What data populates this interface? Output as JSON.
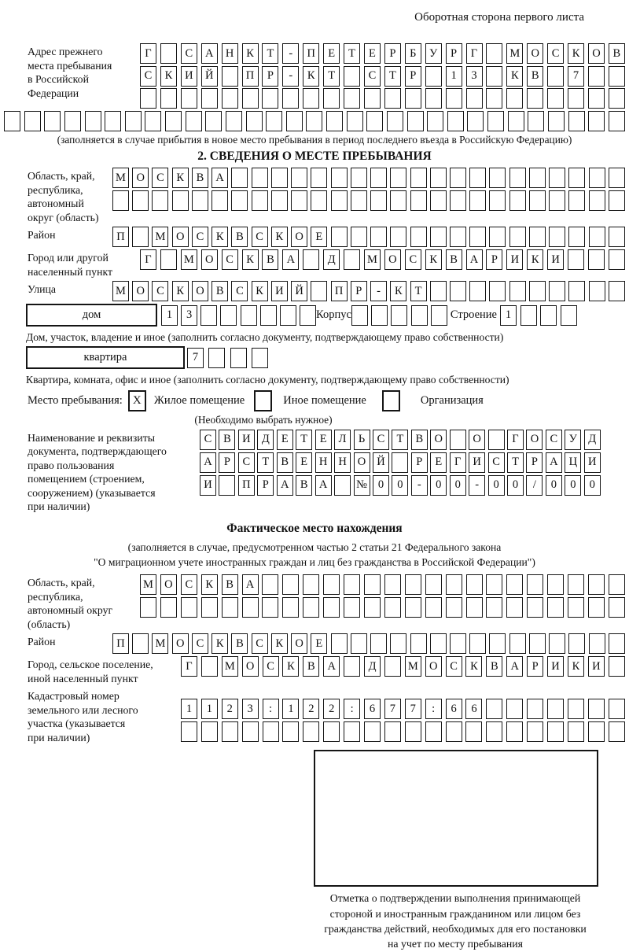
{
  "page": {
    "header_note": "Оборотная сторона первого листа"
  },
  "colors": {
    "ink": "#111111",
    "background": "#ffffff"
  },
  "prev_address": {
    "label": "Адрес прежнего\nместа пребывания\nв Российской\nФедерации",
    "rows": [
      [
        "Г",
        "",
        "С",
        "А",
        "Н",
        "К",
        "Т",
        "-",
        "П",
        "Е",
        "Т",
        "Е",
        "Р",
        "Б",
        "У",
        "Р",
        "Г",
        "",
        "М",
        "О",
        "С",
        "К",
        "О",
        "В"
      ],
      [
        "С",
        "К",
        "И",
        "Й",
        "",
        "П",
        "Р",
        "-",
        "К",
        "Т",
        "",
        "С",
        "Т",
        "Р",
        "",
        "1",
        "3",
        "",
        "К",
        "В",
        "",
        "7",
        "",
        ""
      ],
      [
        "",
        "",
        "",
        "",
        "",
        "",
        "",
        "",
        "",
        "",
        "",
        "",
        "",
        "",
        "",
        "",
        "",
        "",
        "",
        "",
        "",
        "",
        "",
        ""
      ]
    ],
    "full_row": [
      "",
      "",
      "",
      "",
      "",
      "",
      "",
      "",
      "",
      "",
      "",
      "",
      "",
      "",
      "",
      "",
      "",
      "",
      "",
      "",
      "",
      "",
      "",
      "",
      "",
      "",
      "",
      "",
      "",
      "",
      ""
    ],
    "note": "(заполняется в случае прибытия в новое место пребывания в период последнего въезда в Российскую Федерацию)"
  },
  "section2": {
    "title": "2. СВЕДЕНИЯ О МЕСТЕ ПРЕБЫВАНИЯ",
    "region": {
      "label": "Область, край,\nреспублика,\nавтономный\nокруг (область)",
      "row1": [
        "М",
        "О",
        "С",
        "К",
        "В",
        "А",
        "",
        "",
        "",
        "",
        "",
        "",
        "",
        "",
        "",
        "",
        "",
        "",
        "",
        "",
        "",
        "",
        "",
        "",
        "",
        ""
      ],
      "row2": [
        "",
        "",
        "",
        "",
        "",
        "",
        "",
        "",
        "",
        "",
        "",
        "",
        "",
        "",
        "",
        "",
        "",
        "",
        "",
        "",
        "",
        "",
        "",
        "",
        "",
        ""
      ]
    },
    "district": {
      "label": "Район",
      "cells": [
        "П",
        "",
        "М",
        "О",
        "С",
        "К",
        "В",
        "С",
        "К",
        "О",
        "Е",
        "",
        "",
        "",
        "",
        "",
        "",
        "",
        "",
        "",
        "",
        "",
        "",
        "",
        "",
        ""
      ]
    },
    "city": {
      "label": "Город или другой\nнаселенный пункт",
      "cells": [
        "Г",
        "",
        "М",
        "О",
        "С",
        "К",
        "В",
        "А",
        "",
        "Д",
        "",
        "М",
        "О",
        "С",
        "К",
        "В",
        "А",
        "Р",
        "И",
        "К",
        "И",
        "",
        "",
        ""
      ]
    },
    "street": {
      "label": "Улица",
      "cells": [
        "М",
        "О",
        "С",
        "К",
        "О",
        "В",
        "С",
        "К",
        "И",
        "Й",
        "",
        "П",
        "Р",
        "-",
        "К",
        "Т",
        "",
        "",
        "",
        "",
        "",
        "",
        "",
        "",
        "",
        ""
      ]
    },
    "house": {
      "box_label": "дом",
      "cells": [
        "1",
        "3",
        "",
        "",
        "",
        "",
        "",
        ""
      ],
      "korpus_label": "Корпус",
      "korpus_cells": [
        "",
        "",
        "",
        "",
        ""
      ],
      "stroenie_label": "Строение",
      "stroenie_cells": [
        "1",
        "",
        "",
        ""
      ]
    },
    "house_note": "Дом, участок, владение и иное (заполнить согласно документу, подтверждающему право собственности)",
    "apartment": {
      "box_label": "квартира",
      "cells": [
        "7",
        "",
        "",
        ""
      ]
    },
    "apartment_note": "Квартира, комната, офис и иное (заполнить согласно документу, подтверждающему право собственности)",
    "stay_type": {
      "label": "Место пребывания:",
      "options": [
        {
          "label": "Жилое помещение",
          "mark": "X"
        },
        {
          "label": "Иное помещение",
          "mark": ""
        },
        {
          "label": "Организация",
          "mark": ""
        }
      ],
      "note": "(Необходимо выбрать нужное)"
    },
    "document": {
      "label": "Наименование и реквизиты\nдокумента, подтверждающего\nправо пользования\nпомещением (строением,\nсооружением) (указывается\nпри наличии)",
      "rows": [
        [
          "С",
          "В",
          "И",
          "Д",
          "Е",
          "Т",
          "Е",
          "Л",
          "Ь",
          "С",
          "Т",
          "В",
          "О",
          "",
          "О",
          "",
          "Г",
          "О",
          "С",
          "У",
          "Д"
        ],
        [
          "А",
          "Р",
          "С",
          "Т",
          "В",
          "Е",
          "Н",
          "Н",
          "О",
          "Й",
          "",
          "Р",
          "Е",
          "Г",
          "И",
          "С",
          "Т",
          "Р",
          "А",
          "Ц",
          "И"
        ],
        [
          "И",
          "",
          "П",
          "Р",
          "А",
          "В",
          "А",
          "",
          "№",
          "0",
          "0",
          "-",
          "0",
          "0",
          "-",
          "0",
          "0",
          "/",
          "0",
          "0",
          "0"
        ]
      ]
    }
  },
  "actual_location": {
    "title": "Фактическое место нахождения",
    "note_line1": "(заполняется в случае, предусмотренном частью 2 статьи 21 Федерального закона",
    "note_line2": "\"О миграционном учете иностранных граждан и лиц без гражданства в Российской Федерации\")",
    "region": {
      "label": "Область, край,\nреспублика,\nавтономный округ\n(область)",
      "row1": [
        "М",
        "О",
        "С",
        "К",
        "В",
        "А",
        "",
        "",
        "",
        "",
        "",
        "",
        "",
        "",
        "",
        "",
        "",
        "",
        "",
        "",
        "",
        "",
        "",
        ""
      ],
      "row2": [
        "",
        "",
        "",
        "",
        "",
        "",
        "",
        "",
        "",
        "",
        "",
        "",
        "",
        "",
        "",
        "",
        "",
        "",
        "",
        "",
        "",
        "",
        "",
        ""
      ]
    },
    "district": {
      "label": "Район",
      "cells": [
        "П",
        "",
        "М",
        "О",
        "С",
        "К",
        "В",
        "С",
        "К",
        "О",
        "Е",
        "",
        "",
        "",
        "",
        "",
        "",
        "",
        "",
        "",
        "",
        "",
        "",
        "",
        "",
        ""
      ]
    },
    "city": {
      "label": "Город, сельское поселение,\nиной населенный пункт",
      "cells": [
        "Г",
        "",
        "М",
        "О",
        "С",
        "К",
        "В",
        "А",
        "",
        "Д",
        "",
        "М",
        "О",
        "С",
        "К",
        "В",
        "А",
        "Р",
        "И",
        "К",
        "И",
        ""
      ]
    },
    "cadastral": {
      "label": "Кадастровый номер\nземельного или лесного\nучастка (указывается\nпри наличии)",
      "row1": [
        "1",
        "1",
        "2",
        "3",
        ":",
        "1",
        "2",
        "2",
        ":",
        "6",
        "7",
        "7",
        ":",
        "6",
        "6",
        "",
        "",
        "",
        "",
        "",
        "",
        ""
      ],
      "row2": [
        "",
        "",
        "",
        "",
        "",
        "",
        "",
        "",
        "",
        "",
        "",
        "",
        "",
        "",
        "",
        "",
        "",
        "",
        "",
        "",
        "",
        ""
      ]
    },
    "stamp_note": "Отметка о подтверждении выполнения принимающей\nстороной и иностранным гражданином или лицом без\nгражданства действий, необходимых для его постановки\nна учет по месту пребывания"
  }
}
